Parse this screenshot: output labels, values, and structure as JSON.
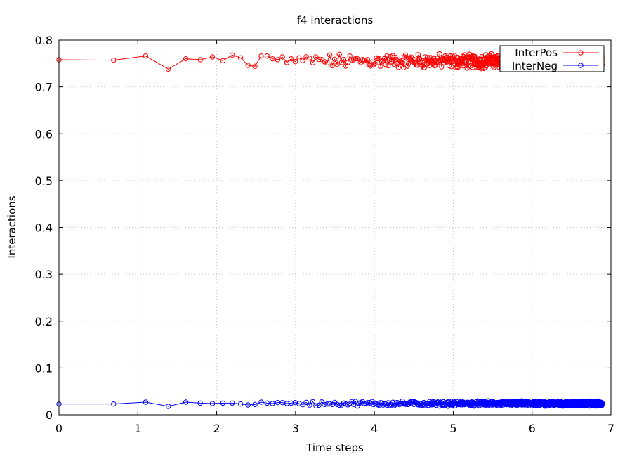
{
  "chart_data": {
    "type": "line",
    "title": "f4 interactions",
    "xlabel": "Time steps",
    "ylabel": "Interactions",
    "xlim": [
      0,
      7
    ],
    "ylim": [
      0,
      0.8
    ],
    "xticks": [
      "0",
      "1",
      "2",
      "3",
      "4",
      "5",
      "6",
      "7"
    ],
    "yticks": [
      "0",
      "0.1",
      "0.2",
      "0.3",
      "0.4",
      "0.5",
      "0.6",
      "0.7",
      "0.8"
    ],
    "grid": true,
    "legend_position": "top-right",
    "marker": "open-circle",
    "x_scale": "log(step)",
    "series": [
      {
        "name": "InterPos",
        "color": "#ff0000",
        "center": 0.755,
        "spread": 0.012,
        "x": [
          0,
          0.693,
          1.099,
          1.386,
          1.609,
          1.792,
          1.946,
          2.079,
          2.197,
          2.303,
          2.398,
          2.485,
          2.565,
          2.639,
          2.708,
          2.773,
          2.833,
          2.89,
          2.944,
          2.996,
          3.045
        ],
        "values": [
          0.758,
          0.757,
          0.766,
          0.738,
          0.76,
          0.758,
          0.764,
          0.756,
          0.768,
          0.762,
          0.746,
          0.744,
          0.766,
          0.766,
          0.76,
          0.758,
          0.764,
          0.752,
          0.76,
          0.754,
          0.762
        ]
      },
      {
        "name": "InterNeg",
        "color": "#0000ff",
        "center": 0.024,
        "spread": 0.004,
        "x": [
          0,
          0.693,
          1.099,
          1.386,
          1.609,
          1.792,
          1.946,
          2.079,
          2.197,
          2.303,
          2.398,
          2.485,
          2.565,
          2.639,
          2.708,
          2.773,
          2.833,
          2.89,
          2.944,
          2.996,
          3.045
        ],
        "values": [
          0.023,
          0.023,
          0.027,
          0.018,
          0.027,
          0.025,
          0.024,
          0.025,
          0.025,
          0.023,
          0.021,
          0.022,
          0.027,
          0.025,
          0.024,
          0.026,
          0.026,
          0.024,
          0.025,
          0.026,
          0.024
        ]
      }
    ]
  }
}
